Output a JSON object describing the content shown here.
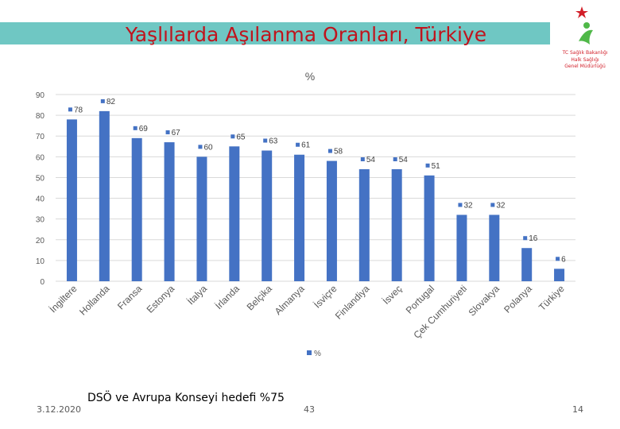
{
  "header": {
    "title": "Yaşlılarda  Aşılanma Oranları, Türkiye",
    "logo_line1": "TC Sağlık Bakanlığı",
    "logo_line2": "Halk Sağlığı",
    "logo_line3": "Genel Müdürlüğü",
    "brand_color": "#d21e28",
    "bar_color": "#6fc7c3"
  },
  "chart_data": {
    "type": "bar",
    "title": "%",
    "legend": "%",
    "legend_position": "bottom",
    "grid": true,
    "ylim": [
      0,
      90
    ],
    "yticks": [
      0,
      10,
      20,
      30,
      40,
      50,
      60,
      70,
      80,
      90
    ],
    "categories": [
      "İngiltere",
      "Hollanda",
      "Fransa",
      "Estonya",
      "İtalya",
      "İrlanda",
      "Belçika",
      "Almanya",
      "İsviçre",
      "Finlandiya",
      "İsveç",
      "Portugal",
      "Çek Cumhuriyeti",
      "Slovakya",
      "Polanya",
      "Türkiye"
    ],
    "series": [
      {
        "name": "%",
        "color": "#4472c4",
        "values": [
          78,
          82,
          69,
          67,
          60,
          65,
          63,
          61,
          58,
          54,
          54,
          51,
          32,
          32,
          16,
          6
        ]
      }
    ]
  },
  "footer": {
    "date": "3.12.2020",
    "note": "DSÖ ve Avrupa Konseyi hedefi  %75",
    "center_number": "43",
    "page_number": "14"
  }
}
